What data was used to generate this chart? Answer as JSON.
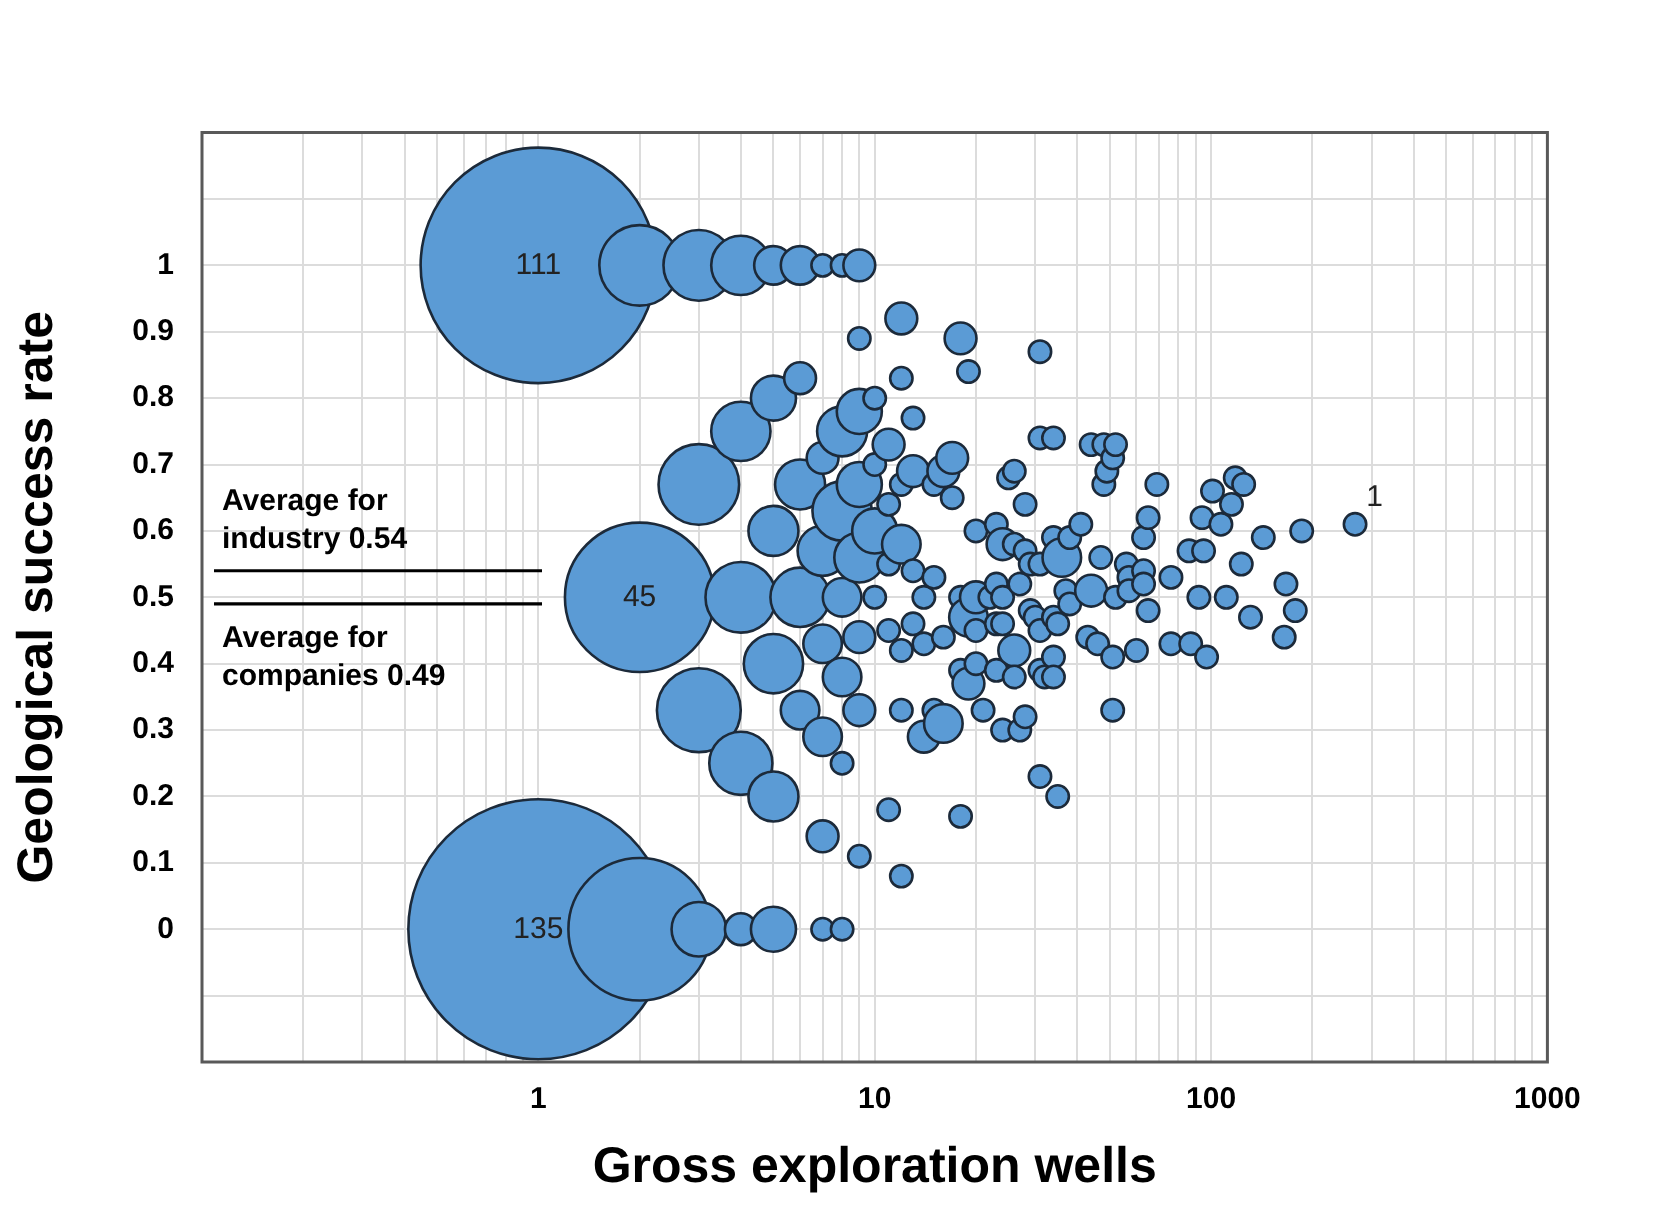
{
  "chart_data": {
    "type": "bubble",
    "xlabel": "Gross exploration wells",
    "ylabel": "Geological success rate",
    "log": "x",
    "grid": true,
    "legend": false,
    "xlim": [
      0.1,
      1000
    ],
    "xticks": [
      {
        "value": 0.1,
        "label": null
      },
      {
        "value": 0.2,
        "label": null
      },
      {
        "value": 0.3,
        "label": null
      },
      {
        "value": 0.4,
        "label": null
      },
      {
        "value": 0.5,
        "label": null
      },
      {
        "value": 0.6,
        "label": null
      },
      {
        "value": 0.7,
        "label": null
      },
      {
        "value": 0.8,
        "label": null
      },
      {
        "value": 0.9,
        "label": null
      },
      1,
      {
        "value": 2,
        "label": null
      },
      {
        "value": 3,
        "label": null
      },
      {
        "value": 4,
        "label": null
      },
      {
        "value": 5,
        "label": null
      },
      {
        "value": 6,
        "label": null
      },
      {
        "value": 7,
        "label": null
      },
      {
        "value": 8,
        "label": null
      },
      {
        "value": 9,
        "label": null
      },
      10,
      {
        "value": 20,
        "label": null
      },
      {
        "value": 30,
        "label": null
      },
      {
        "value": 40,
        "label": null
      },
      {
        "value": 50,
        "label": null
      },
      {
        "value": 60,
        "label": null
      },
      {
        "value": 70,
        "label": null
      },
      {
        "value": 80,
        "label": null
      },
      {
        "value": 90,
        "label": null
      },
      100,
      {
        "value": 200,
        "label": null
      },
      {
        "value": 300,
        "label": null
      },
      {
        "value": 400,
        "label": null
      },
      {
        "value": 500,
        "label": null
      },
      {
        "value": 600,
        "label": null
      },
      {
        "value": 700,
        "label": null
      },
      {
        "value": 800,
        "label": null
      },
      {
        "value": 900,
        "label": null
      },
      1000
    ],
    "ylim": [
      -0.2,
      1.2
    ],
    "yticks": [
      {
        "value": -0.2,
        "label": null
      },
      {
        "value": -0.1,
        "label": null
      },
      0,
      0.1,
      0.2,
      0.3,
      0.4,
      0.5,
      0.6,
      0.7,
      0.8,
      0.9,
      1,
      {
        "value": 1.1,
        "label": null
      },
      {
        "value": 1.2,
        "label": null
      }
    ],
    "ref_lines": [
      {
        "axis": "y",
        "value": 0.54,
        "label": "Average for industry 0.54",
        "color": "#000000"
      },
      {
        "axis": "y",
        "value": 0.49,
        "label": "Average for companies 0.49",
        "color": "#000000"
      }
    ],
    "annotations": [
      {
        "text": "111",
        "x": 1,
        "y": 1
      },
      {
        "text": "45",
        "x": 2,
        "y": 0.5
      },
      {
        "text": "135",
        "x": 1,
        "y": 0
      },
      {
        "text": "1",
        "x": 268,
        "y": 0.61
      }
    ],
    "series": [
      {
        "color": "#5b9bd5",
        "x": [
          1,
          2,
          3,
          4,
          5,
          6,
          7,
          8,
          9,
          1,
          2,
          3,
          4,
          5,
          7,
          8,
          2,
          3,
          3,
          4,
          4,
          4,
          5,
          5,
          5,
          5,
          6,
          6,
          6,
          6,
          7,
          7,
          7,
          7,
          7,
          8,
          8,
          8,
          8,
          8,
          9,
          9,
          9,
          9,
          9,
          9,
          9,
          10,
          10,
          10,
          10,
          11,
          11,
          11,
          11,
          11,
          12,
          12,
          12,
          12,
          12,
          12,
          12,
          13,
          13,
          13,
          13,
          14,
          14,
          14,
          15,
          15,
          15,
          16,
          16,
          16,
          17,
          17,
          18,
          18,
          18,
          18,
          19,
          19,
          19,
          20,
          20,
          20,
          20,
          21,
          22,
          23,
          23,
          23,
          23,
          24,
          24,
          24,
          24,
          25,
          26,
          26,
          26,
          26,
          27,
          27,
          28,
          28,
          28,
          29,
          29,
          30,
          31,
          31,
          31,
          31,
          31,
          31,
          32,
          34,
          34,
          34,
          34,
          34,
          35,
          35,
          36,
          37,
          38,
          38,
          41,
          43,
          44,
          44,
          46,
          47,
          48,
          48,
          49,
          51,
          51,
          51,
          52,
          52,
          56,
          57,
          57,
          60,
          63,
          63,
          63,
          65,
          65,
          69,
          76,
          76,
          86,
          87,
          92,
          94,
          95,
          97,
          101,
          107,
          111,
          115,
          118,
          123,
          125,
          131,
          143,
          165,
          167,
          178,
          186,
          268
        ],
        "values": [
          1,
          1,
          1,
          1,
          1,
          1,
          1,
          1,
          1,
          0,
          0,
          0,
          0,
          0,
          0,
          0,
          0.5,
          0.67,
          0.33,
          0.75,
          0.5,
          0.25,
          0.8,
          0.6,
          0.4,
          0.2,
          0.83,
          0.67,
          0.5,
          0.33,
          0.71,
          0.57,
          0.43,
          0.29,
          0.14,
          0.75,
          0.63,
          0.5,
          0.38,
          0.25,
          0.89,
          0.78,
          0.67,
          0.56,
          0.44,
          0.33,
          0.11,
          0.8,
          0.7,
          0.6,
          0.5,
          0.73,
          0.64,
          0.55,
          0.45,
          0.18,
          0.92,
          0.83,
          0.67,
          0.58,
          0.42,
          0.33,
          0.08,
          0.77,
          0.69,
          0.54,
          0.46,
          0.5,
          0.43,
          0.29,
          0.67,
          0.53,
          0.33,
          0.69,
          0.44,
          0.31,
          0.71,
          0.65,
          0.89,
          0.5,
          0.39,
          0.17,
          0.84,
          0.47,
          0.37,
          0.6,
          0.5,
          0.45,
          0.4,
          0.33,
          0.5,
          0.61,
          0.52,
          0.46,
          0.39,
          0.58,
          0.5,
          0.46,
          0.3,
          0.68,
          0.69,
          0.58,
          0.42,
          0.38,
          0.52,
          0.3,
          0.64,
          0.57,
          0.32,
          0.55,
          0.48,
          0.47,
          0.87,
          0.74,
          0.55,
          0.45,
          0.39,
          0.23,
          0.38,
          0.74,
          0.59,
          0.47,
          0.41,
          0.38,
          0.46,
          0.2,
          0.56,
          0.51,
          0.59,
          0.49,
          0.61,
          0.44,
          0.73,
          0.51,
          0.43,
          0.56,
          0.73,
          0.67,
          0.69,
          0.71,
          0.41,
          0.33,
          0.73,
          0.5,
          0.55,
          0.53,
          0.51,
          0.42,
          0.59,
          0.54,
          0.52,
          0.62,
          0.48,
          0.67,
          0.53,
          0.43,
          0.57,
          0.43,
          0.5,
          0.62,
          0.57,
          0.41,
          0.66,
          0.61,
          0.5,
          0.64,
          0.68,
          0.55,
          0.67,
          0.47,
          0.59,
          0.44,
          0.52,
          0.48,
          0.6,
          0.61
        ],
        "sizes": [
          0.82,
          0.096,
          0.074,
          0.052,
          0.022,
          0.022,
          0.0074,
          0.0074,
          0.015,
          1,
          0.3,
          0.044,
          0.015,
          0.03,
          0.0074,
          0.0074,
          0.33,
          0.096,
          0.104,
          0.052,
          0.074,
          0.059,
          0.03,
          0.037,
          0.052,
          0.037,
          0.015,
          0.037,
          0.052,
          0.022,
          0.015,
          0.037,
          0.022,
          0.022,
          0.015,
          0.037,
          0.052,
          0.022,
          0.022,
          0.0074,
          0.0074,
          0.03,
          0.03,
          0.037,
          0.015,
          0.015,
          0.0074,
          0.0074,
          0.0074,
          0.03,
          0.0074,
          0.015,
          0.0074,
          0.0074,
          0.0074,
          0.0074,
          0.015,
          0.0074,
          0.0074,
          0.022,
          0.0074,
          0.0074,
          0.0074,
          0.0074,
          0.015,
          0.0074,
          0.0074,
          0.0074,
          0.0074,
          0.015,
          0.0074,
          0.0074,
          0.0074,
          0.015,
          0.0074,
          0.022,
          0.015,
          0.0074,
          0.015,
          0.0074,
          0.0074,
          0.0074,
          0.0074,
          0.022,
          0.015,
          0.0074,
          0.015,
          0.0074,
          0.0074,
          0.0074,
          0.0074,
          0.0074,
          0.0074,
          0.0074,
          0.0074,
          0.015,
          0.0074,
          0.0074,
          0.0074,
          0.0074,
          0.0074,
          0.0074,
          0.015,
          0.0074,
          0.0074,
          0.0074,
          0.0074,
          0.0074,
          0.0074,
          0.0074,
          0.0074,
          0.0074,
          0.0074,
          0.0074,
          0.0074,
          0.0074,
          0.0074,
          0.0074,
          0.0074,
          0.0074,
          0.0074,
          0.0074,
          0.0074,
          0.0074,
          0.0074,
          0.0074,
          0.022,
          0.0074,
          0.0074,
          0.0074,
          0.0074,
          0.0074,
          0.0074,
          0.015,
          0.0074,
          0.0074,
          0.0074,
          0.0074,
          0.0074,
          0.0074,
          0.0074,
          0.0074,
          0.0074,
          0.0074,
          0.0074,
          0.0074,
          0.0074,
          0.0074,
          0.0074,
          0.0074,
          0.0074,
          0.0074,
          0.0074,
          0.0074,
          0.0074,
          0.0074,
          0.0074,
          0.0074,
          0.0074,
          0.0074,
          0.0074,
          0.0074,
          0.0074,
          0.0074,
          0.0074,
          0.0074,
          0.0074,
          0.0074,
          0.0074,
          0.0074,
          0.0074,
          0.0074,
          0.0074,
          0.0074,
          0.0074,
          0.0074
        ]
      }
    ]
  }
}
